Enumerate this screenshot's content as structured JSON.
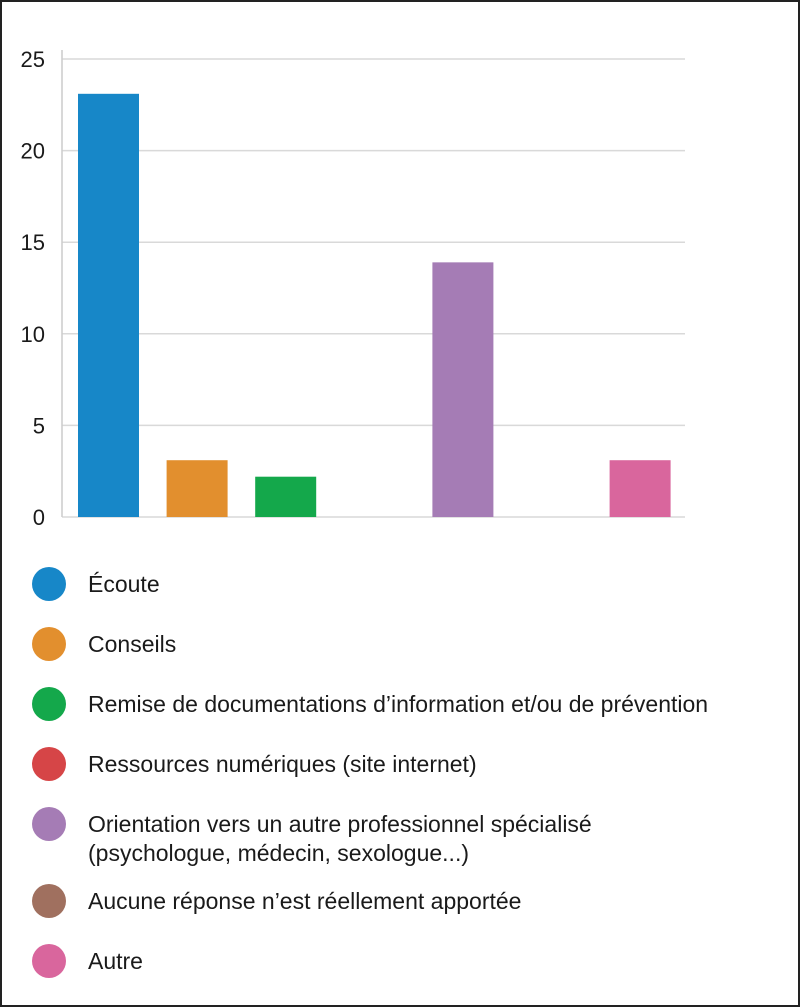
{
  "chart_data": {
    "type": "bar",
    "categories": [
      "Écoute",
      "Conseils",
      "Remise de documentations d’information et/ou de prévention",
      "Ressources numériques (site internet)",
      "Orientation vers un autre professionnel spécialisé\n(psychologue, médecin, sexologue...)",
      "Aucune réponse n’est réellement apportée",
      "Autre"
    ],
    "values": [
      23.1,
      3.1,
      2.2,
      0,
      13.9,
      0,
      3.1
    ],
    "colors": [
      "#1787c8",
      "#e28f2e",
      "#14a84b",
      "#d64547",
      "#a57cb5",
      "#a0705f",
      "#d9669d"
    ],
    "yticks": [
      "0",
      "5",
      "10",
      "15",
      "20",
      "25"
    ],
    "ylim": [
      0,
      25
    ],
    "grid": true,
    "legend_position": "bottom"
  }
}
